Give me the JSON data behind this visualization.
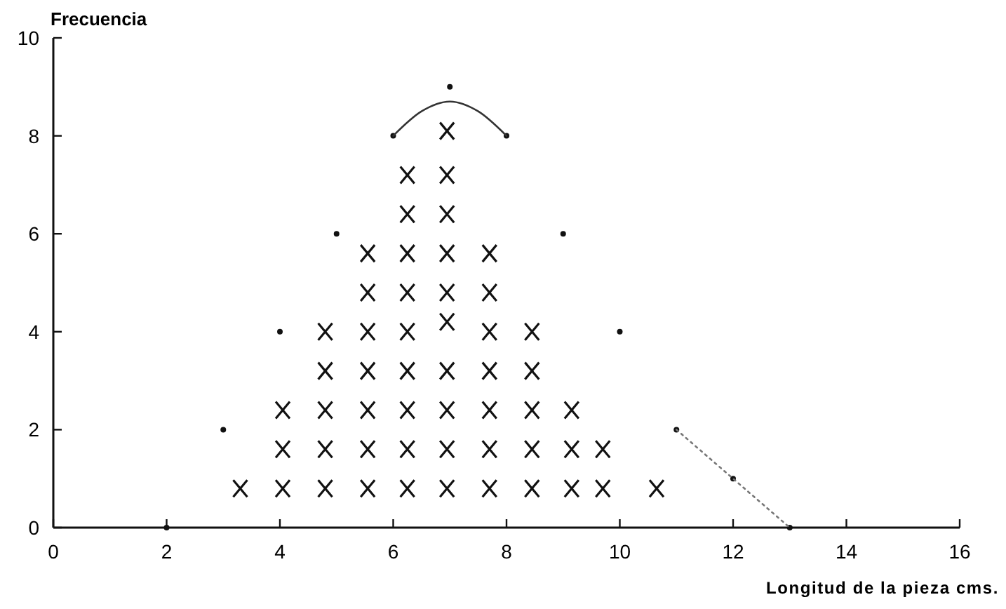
{
  "chart_data": {
    "type": "scatter",
    "xlabel": "Longitud de la pieza cms.",
    "ylabel": "Frecuencia",
    "xlim": [
      0,
      16
    ],
    "ylim": [
      0,
      10
    ],
    "xticks": [
      0,
      2,
      4,
      6,
      8,
      10,
      12,
      14,
      16
    ],
    "yticks": [
      0,
      2,
      4,
      6,
      8,
      10
    ],
    "grid": false,
    "series": [
      {
        "marker": "cross",
        "color": "#111111",
        "x": [
          3.3,
          4.05,
          4.05,
          4.05,
          4.8,
          4.8,
          4.8,
          4.8,
          4.8,
          5.55,
          5.55,
          5.55,
          5.55,
          5.55,
          5.55,
          5.55,
          6.25,
          6.25,
          6.25,
          6.25,
          6.25,
          6.25,
          6.25,
          6.25,
          6.25,
          6.95,
          6.95,
          6.95,
          6.95,
          6.95,
          6.95,
          6.95,
          6.95,
          6.95,
          6.95,
          7.7,
          7.7,
          7.7,
          7.7,
          7.7,
          7.7,
          7.7,
          8.45,
          8.45,
          8.45,
          8.45,
          8.45,
          9.15,
          9.15,
          9.15,
          9.7,
          9.7,
          10.65
        ],
        "values": [
          0.8,
          0.8,
          1.6,
          2.4,
          0.8,
          1.6,
          2.4,
          3.2,
          4,
          0.8,
          1.6,
          2.4,
          3.2,
          4,
          4.8,
          5.6,
          0.8,
          1.6,
          2.4,
          3.2,
          4,
          4.8,
          5.6,
          6.4,
          7.2,
          0.8,
          1.6,
          2.4,
          3.2,
          4.2,
          4.8,
          5.6,
          6.4,
          7.2,
          8.1,
          0.8,
          1.6,
          2.4,
          3.2,
          4,
          4.8,
          5.6,
          0.8,
          1.6,
          2.4,
          3.2,
          4,
          0.8,
          1.6,
          2.4,
          0.8,
          1.6,
          0.8
        ]
      },
      {
        "marker": "circle",
        "color": "#111111",
        "x": [
          2,
          3,
          4,
          5,
          6,
          7,
          8,
          9,
          10,
          11,
          12,
          13
        ],
        "values": [
          0,
          2,
          4,
          6,
          8,
          9,
          8,
          6,
          4,
          2,
          1,
          0
        ]
      },
      {
        "type": "line",
        "marker": "none",
        "line_style": "solid",
        "color": "#333333",
        "x": [
          6,
          6.5,
          7,
          7.5,
          8
        ],
        "values": [
          8,
          8.5,
          8.7,
          8.5,
          8
        ]
      },
      {
        "type": "line",
        "marker": "none",
        "line_style": "dotted",
        "color": "#777777",
        "x": [
          11,
          12,
          13
        ],
        "values": [
          2,
          1,
          0
        ]
      }
    ]
  }
}
